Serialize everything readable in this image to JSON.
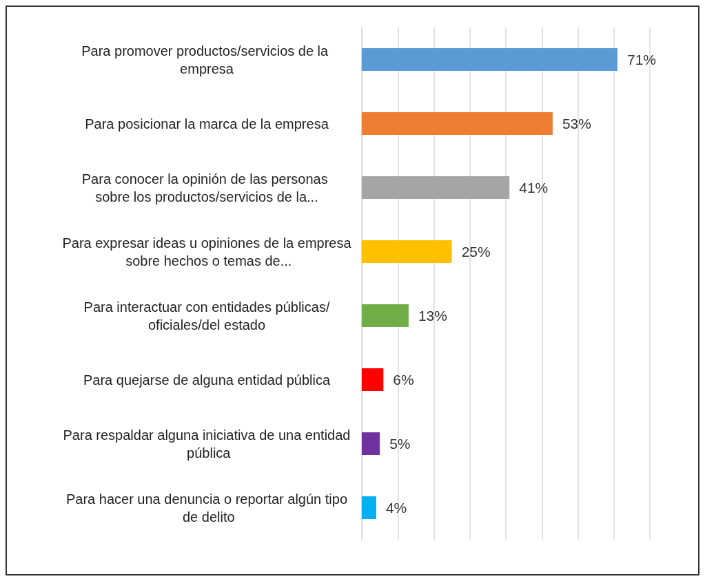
{
  "chart_data": {
    "type": "bar",
    "orientation": "horizontal",
    "categories": [
      "Para promover productos/servicios de la empresa",
      "Para posicionar la marca de la empresa",
      "Para conocer la opinión de las personas sobre los productos/servicios de la...",
      "Para expresar ideas u opiniones de la empresa sobre hechos o temas de...",
      "Para interactuar con entidades públicas/oficiales/del estado",
      "Para quejarse de alguna entidad pública",
      "Para respaldar alguna iniciativa de una entidad pública",
      "Para hacer una denuncia o reportar algún tipo de delito"
    ],
    "values": [
      71,
      53,
      41,
      25,
      13,
      6,
      5,
      4
    ],
    "value_labels": [
      "71%",
      "53%",
      "41%",
      "25%",
      "13%",
      "6%",
      "5%",
      "4%"
    ],
    "colors": [
      "#5b9bd5",
      "#ed7d31",
      "#a5a5a5",
      "#ffc000",
      "#70ad47",
      "#ff0000",
      "#7030a0",
      "#00b0f0"
    ],
    "xlim": [
      0,
      80
    ],
    "xticks": [
      {
        "value": 0,
        "label": null
      },
      {
        "value": 10,
        "label": null
      },
      {
        "value": 20,
        "label": null
      },
      {
        "value": 30,
        "label": null
      },
      {
        "value": 40,
        "label": null
      },
      {
        "value": 50,
        "label": null
      },
      {
        "value": 60,
        "label": null
      },
      {
        "value": 70,
        "label": null
      },
      {
        "value": 80,
        "label": null
      }
    ],
    "tick_labels": "y",
    "grid": "x"
  }
}
